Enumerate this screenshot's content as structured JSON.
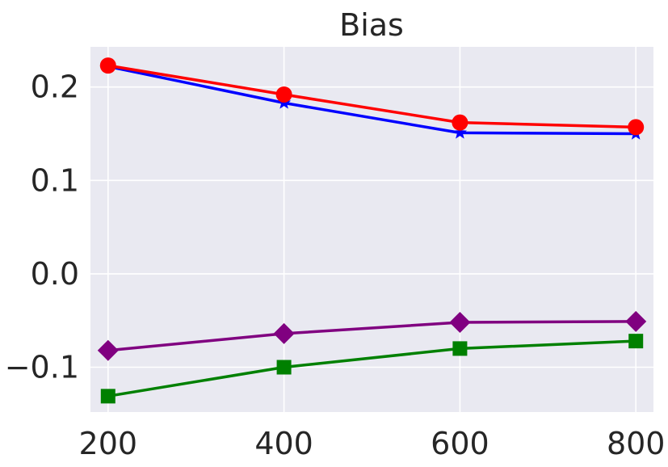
{
  "chart_data": {
    "type": "line",
    "title": "Bias",
    "xlabel": "",
    "ylabel": "",
    "x": [
      200,
      400,
      600,
      800
    ],
    "xlim": [
      180,
      820
    ],
    "ylim": [
      -0.148,
      0.243
    ],
    "xticks": [
      200,
      400,
      600,
      800
    ],
    "yticks": [
      -0.1,
      0.0,
      0.1,
      0.2
    ],
    "xtick_labels": [
      "200",
      "400",
      "600",
      "800"
    ],
    "ytick_labels": [
      "−0.1",
      "0.0",
      "0.1",
      "0.2"
    ],
    "grid": true,
    "background_color": "#e9e9f1",
    "grid_color": "#ffffff",
    "series": [
      {
        "color": "#0000ff",
        "marker": "star",
        "values": [
          0.222,
          0.183,
          0.151,
          0.15
        ]
      },
      {
        "color": "#ff0000",
        "marker": "circle",
        "values": [
          0.223,
          0.192,
          0.162,
          0.157
        ]
      },
      {
        "color": "#800080",
        "marker": "diamond",
        "values": [
          -0.082,
          -0.064,
          -0.052,
          -0.051
        ]
      },
      {
        "color": "#008000",
        "marker": "square",
        "values": [
          -0.131,
          -0.1,
          -0.08,
          -0.072
        ]
      }
    ]
  }
}
